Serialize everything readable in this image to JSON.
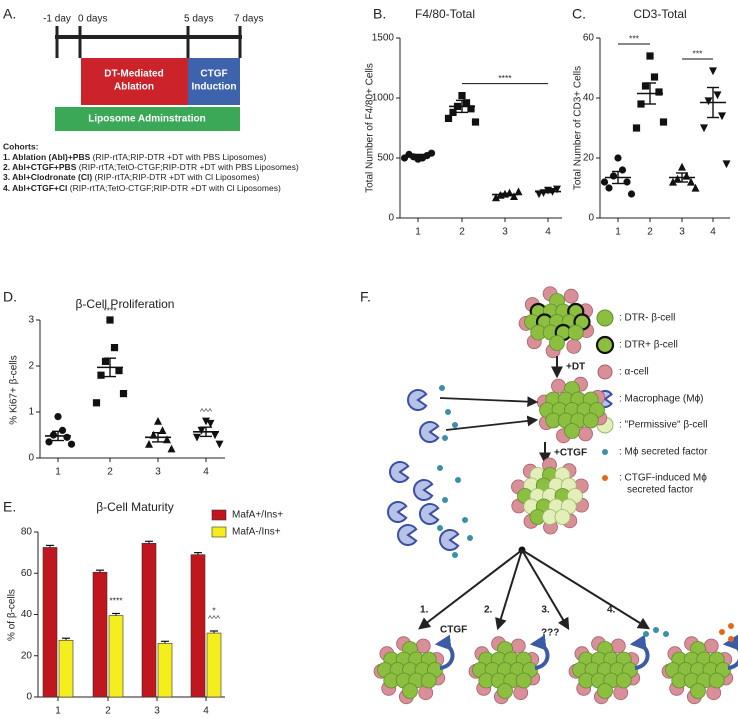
{
  "panel_a": {
    "label": "A.",
    "timeline": [
      "-1 day",
      "0 days",
      "5 days",
      "7 days"
    ],
    "boxes": [
      {
        "lines": [
          "DT-Mediated",
          "Ablation"
        ]
      },
      {
        "lines": [
          "CTGF",
          "Induction"
        ]
      },
      {
        "lines": [
          "Liposome Adminstration"
        ]
      }
    ],
    "cohorts_title": "Cohorts:",
    "cohorts": [
      {
        "name": "1. Ablation (Abl)+PBS",
        "detail": " (RIP-rtTA;RIP-DTR +DT with PBS Liposomes)"
      },
      {
        "name": "2. Abl+CTGF+PBS",
        "detail": " (RIP-rtTA;TetO-CTGF;RIP-DTR +DT with PBS Liposomes)"
      },
      {
        "name": "3. Abl+Clodronate (Cl)",
        "detail": " (RIP-rtTA;RIP-DTR +DT with Cl Liposomes)"
      },
      {
        "name": "4. Abl+CTGF+Cl",
        "detail": " (RIP-rtTA;TetO-CTGF;RIP-DTR +DT with Cl Liposomes)"
      }
    ]
  },
  "chart_data": [
    {
      "panel": "B.",
      "type": "scatter",
      "title": "F4/80-Total",
      "y_label": "Total Number of  F4/80+ Cells",
      "categories": [
        "1",
        "2",
        "3",
        "4"
      ],
      "markers": [
        "circle",
        "square",
        "triangle",
        "triangle-down"
      ],
      "groups": [
        [
          490,
          500,
          510,
          520,
          530,
          540,
          500
        ],
        [
          1020,
          960,
          930,
          910,
          880,
          800,
          830
        ],
        [
          200,
          210,
          190,
          180,
          170,
          220
        ],
        [
          230,
          220,
          210,
          240,
          200
        ]
      ],
      "means": [
        520,
        930,
        195,
        220
      ],
      "errors": [
        10,
        50,
        10,
        8
      ],
      "ylim": [
        0,
        1500
      ],
      "yticks": [
        0,
        500,
        1000,
        1500
      ],
      "annotations": [
        {
          "text": "****",
          "between": [
            "2",
            "4"
          ]
        }
      ]
    },
    {
      "panel": "C.",
      "type": "scatter",
      "title": "CD3-Total",
      "y_label": "Total Number of CD3+ Cells",
      "categories": [
        "1",
        "2",
        "3",
        "4"
      ],
      "markers": [
        "circle",
        "square",
        "triangle",
        "triangle-down"
      ],
      "groups": [
        [
          20,
          16,
          14,
          12,
          10,
          8,
          12
        ],
        [
          54,
          47,
          44,
          42,
          38,
          32,
          30
        ],
        [
          17,
          14,
          13,
          12,
          12,
          10
        ],
        [
          49,
          41,
          39,
          34,
          30,
          18
        ]
      ],
      "means": [
        13.5,
        41.5,
        13.5,
        38.5
      ],
      "errors": [
        2,
        3.5,
        1.5,
        5
      ],
      "ylim": [
        0,
        60
      ],
      "yticks": [
        0,
        20,
        40,
        60
      ],
      "annotations": [
        {
          "text": "***",
          "between": [
            "1",
            "2"
          ]
        },
        {
          "text": "***",
          "between": [
            "3",
            "4"
          ]
        }
      ]
    },
    {
      "panel": "D.",
      "type": "scatter",
      "title": "β-Cell  Proliferation",
      "y_label": "% Ki67+ β-cells",
      "categories": [
        "1",
        "2",
        "3",
        "4"
      ],
      "markers": [
        "circle",
        "square",
        "triangle",
        "triangle-down"
      ],
      "groups": [
        [
          0.9,
          0.6,
          0.5,
          0.45,
          0.35,
          0.3
        ],
        [
          3.0,
          2.4,
          2.1,
          1.9,
          1.8,
          1.4,
          1.2
        ],
        [
          0.8,
          0.6,
          0.5,
          0.4,
          0.3,
          0.2
        ],
        [
          0.8,
          0.75,
          0.6,
          0.5,
          0.45,
          0.3
        ]
      ],
      "means": [
        0.48,
        1.97,
        0.45,
        0.57
      ],
      "errors": [
        0.1,
        0.2,
        0.1,
        0.1
      ],
      "ylim": [
        0,
        3
      ],
      "yticks": [
        0,
        1,
        2,
        3
      ],
      "annotations": [
        {
          "text": "****",
          "category": "2"
        },
        {
          "text": "^^^",
          "category": "4"
        }
      ]
    },
    {
      "panel": "E.",
      "type": "bar",
      "title": "β-Cell Maturity",
      "y_label": "% of β-cells",
      "categories": [
        "1",
        "2",
        "3",
        "4"
      ],
      "legend": "upper right",
      "series": [
        {
          "name": "MafA+/Ins+",
          "color": "#c0161d",
          "values": [
            72.5,
            60.5,
            74.5,
            69
          ],
          "errors": [
            1,
            1,
            1,
            1
          ]
        },
        {
          "name": "MafA-/Ins+",
          "color": "#f5ee1d",
          "values": [
            27.5,
            39.5,
            26,
            31
          ],
          "errors": [
            1,
            1,
            1,
            1
          ]
        }
      ],
      "ylim": [
        0,
        80
      ],
      "yticks": [
        0,
        20,
        40,
        60,
        80
      ],
      "annotations": [
        {
          "text": "****",
          "category": "2",
          "series": "MafA-/Ins+"
        },
        {
          "text": "*",
          "category": "4",
          "series": "MafA-/Ins+"
        },
        {
          "text": "^^^",
          "category": "4",
          "series": "MafA-/Ins+"
        }
      ]
    }
  ],
  "panel_f": {
    "label": "F.",
    "legend": [
      {
        "lines": [
          ": DTR- β-cell"
        ]
      },
      {
        "lines": [
          ": DTR+ β-cell"
        ]
      },
      {
        "lines": [
          ": α-cell"
        ]
      },
      {
        "lines": [
          ": Macrophage (Mϕ)"
        ]
      },
      {
        "lines": [
          ": \"Permissive\" β-cell"
        ]
      },
      {
        "lines": [
          ": Mϕ secreted factor"
        ]
      },
      {
        "lines": [
          ": CTGF-induced Mϕ",
          "secreted factor"
        ]
      }
    ],
    "steps": [
      "+DT",
      "+CTGF"
    ],
    "branches": [
      "1.",
      "2.",
      "3.",
      "4."
    ],
    "outcome_labels": [
      "CTGF",
      "???"
    ]
  }
}
